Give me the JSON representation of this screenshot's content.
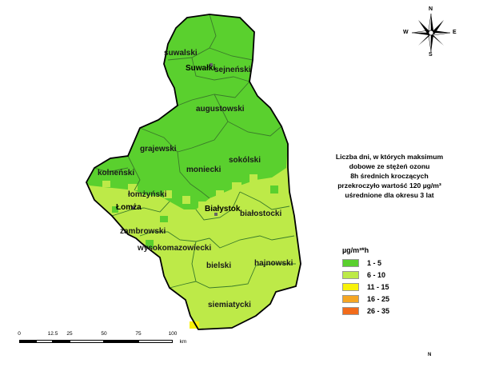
{
  "map": {
    "regions": [
      {
        "name": "suwalski"
      },
      {
        "name": "Suwałki"
      },
      {
        "name": "sejneński"
      },
      {
        "name": "augustowski"
      },
      {
        "name": "grajewski"
      },
      {
        "name": "sokólski"
      },
      {
        "name": "moniecki"
      },
      {
        "name": "kolneński"
      },
      {
        "name": "łomżyński"
      },
      {
        "name": "Łomża"
      },
      {
        "name": "Białystok"
      },
      {
        "name": "białostocki"
      },
      {
        "name": "zambrowski"
      },
      {
        "name": "wysokomazowiecki"
      },
      {
        "name": "bielski"
      },
      {
        "name": "hajnowski"
      },
      {
        "name": "siemiatycki"
      }
    ],
    "colors": {
      "class_1_5": "#5ad02e",
      "class_6_10": "#bdea48",
      "class_11_15": "#f8f20a",
      "class_16_25": "#f5a623",
      "class_26_35": "#f26b1a",
      "border": "#000000",
      "district_border": "#3a7a2a"
    }
  },
  "compass": {
    "n": "N",
    "s": "S",
    "e": "E",
    "w": "W"
  },
  "title_lines": [
    "Liczba dni, w których maksimum",
    "dobowe ze stężeń ozonu",
    "8h średnich kroczących",
    "przekroczyło wartość 120 µg/m³",
    "uśrednione dla okresu 3 lat"
  ],
  "legend": {
    "title": "µg/m³*h",
    "items": [
      {
        "label": "1 - 5",
        "color": "#5ad02e"
      },
      {
        "label": "6 - 10",
        "color": "#bdea48"
      },
      {
        "label": "11 - 15",
        "color": "#f8f20a"
      },
      {
        "label": "16 - 25",
        "color": "#f5a623"
      },
      {
        "label": "26 - 35",
        "color": "#f26b1a"
      }
    ]
  },
  "scale_bar": {
    "ticks": [
      "0",
      "12.5",
      "25",
      "50",
      "75",
      "100"
    ],
    "unit": "km"
  },
  "footer_north": "N"
}
